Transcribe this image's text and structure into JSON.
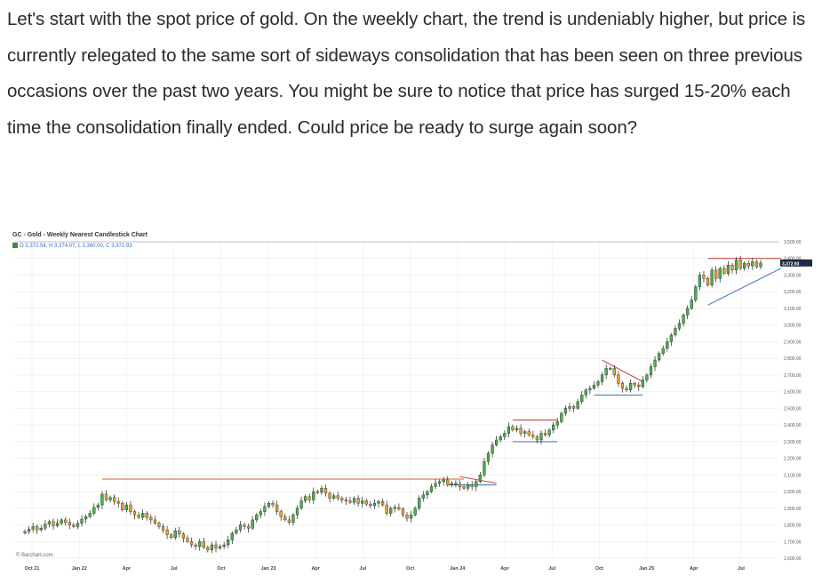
{
  "article": {
    "paragraph": "Let's start with the spot price of gold. On the weekly chart, the trend is undeniably higher, but price is currently relegated to the same sort of sideways consolidation that has been seen on three previous occasions over the past two years. You might be sure to notice that price has surged 15-20% each time the consolidation finally ended. Could price be ready to surge again soon?"
  },
  "chart": {
    "title": "GC - Gold - Weekly Nearest Candlestick Chart",
    "ohlc": "O 3,372.54, H 3,374.07, L 3,360.00, C 3,372.93",
    "watermark": "© Barchart.com",
    "last_price_badge": "3,372.93"
  },
  "chart_data": {
    "type": "candlestick",
    "title": "GC - Gold - Weekly Nearest Candlestick Chart",
    "xlabel": "",
    "ylabel": "",
    "ylim": [
      1600,
      3500
    ],
    "y_ticks": [
      "1,600.00",
      "1,700.00",
      "1,800.00",
      "1,900.00",
      "2,000.00",
      "2,100.00",
      "2,200.00",
      "2,300.00",
      "2,400.00",
      "2,500.00",
      "2,600.00",
      "2,700.00",
      "2,800.00",
      "2,900.00",
      "3,000.00",
      "3,100.00",
      "3,200.00",
      "3,300.00",
      "3,400.00",
      "3,500.00"
    ],
    "x_ticks": [
      "Oct 21",
      "Jan 22",
      "Apr",
      "Jul",
      "Oct",
      "Jan 23",
      "Apr",
      "Jul",
      "Oct",
      "Jan 24",
      "Apr",
      "Jul",
      "Oct",
      "Jan 25",
      "Apr",
      "Jul"
    ],
    "grid": true,
    "closes": [
      1760,
      1775,
      1790,
      1770,
      1780,
      1805,
      1820,
      1795,
      1810,
      1830,
      1815,
      1800,
      1790,
      1810,
      1835,
      1850,
      1870,
      1905,
      1920,
      1985,
      1950,
      1965,
      1940,
      1930,
      1890,
      1920,
      1880,
      1860,
      1845,
      1870,
      1845,
      1830,
      1810,
      1790,
      1770,
      1740,
      1725,
      1765,
      1745,
      1720,
      1700,
      1680,
      1670,
      1700,
      1665,
      1650,
      1680,
      1660,
      1670,
      1680,
      1710,
      1750,
      1770,
      1800,
      1790,
      1780,
      1830,
      1860,
      1880,
      1910,
      1930,
      1920,
      1880,
      1850,
      1830,
      1815,
      1860,
      1900,
      1945,
      1970,
      1950,
      2000,
      1995,
      2020,
      1990,
      1960,
      1975,
      1960,
      1950,
      1945,
      1935,
      1960,
      1930,
      1945,
      1925,
      1915,
      1930,
      1940,
      1920,
      1870,
      1900,
      1905,
      1895,
      1860,
      1840,
      1860,
      1900,
      1960,
      1980,
      2000,
      2030,
      2050,
      2060,
      2070,
      2040,
      2050,
      2045,
      2030,
      2020,
      2040,
      2030,
      2060,
      2100,
      2180,
      2230,
      2280,
      2310,
      2330,
      2350,
      2390,
      2370,
      2380,
      2350,
      2360,
      2340,
      2330,
      2310,
      2350,
      2340,
      2370,
      2400,
      2420,
      2470,
      2500,
      2510,
      2500,
      2540,
      2580,
      2610,
      2620,
      2640,
      2660,
      2700,
      2740,
      2740,
      2700,
      2650,
      2620,
      2610,
      2650,
      2640,
      2630,
      2670,
      2700,
      2750,
      2790,
      2830,
      2860,
      2900,
      2940,
      2980,
      3010,
      3060,
      3100,
      3150,
      3230,
      3300,
      3280,
      3240,
      3330,
      3280,
      3340,
      3310,
      3360,
      3330,
      3390,
      3340,
      3370,
      3355,
      3380,
      3350,
      3372.93
    ],
    "annotations": {
      "resistance_level": 2075,
      "consolidation_boxes": 4,
      "trendlines": "triangle / channel markings on consolidations"
    }
  }
}
